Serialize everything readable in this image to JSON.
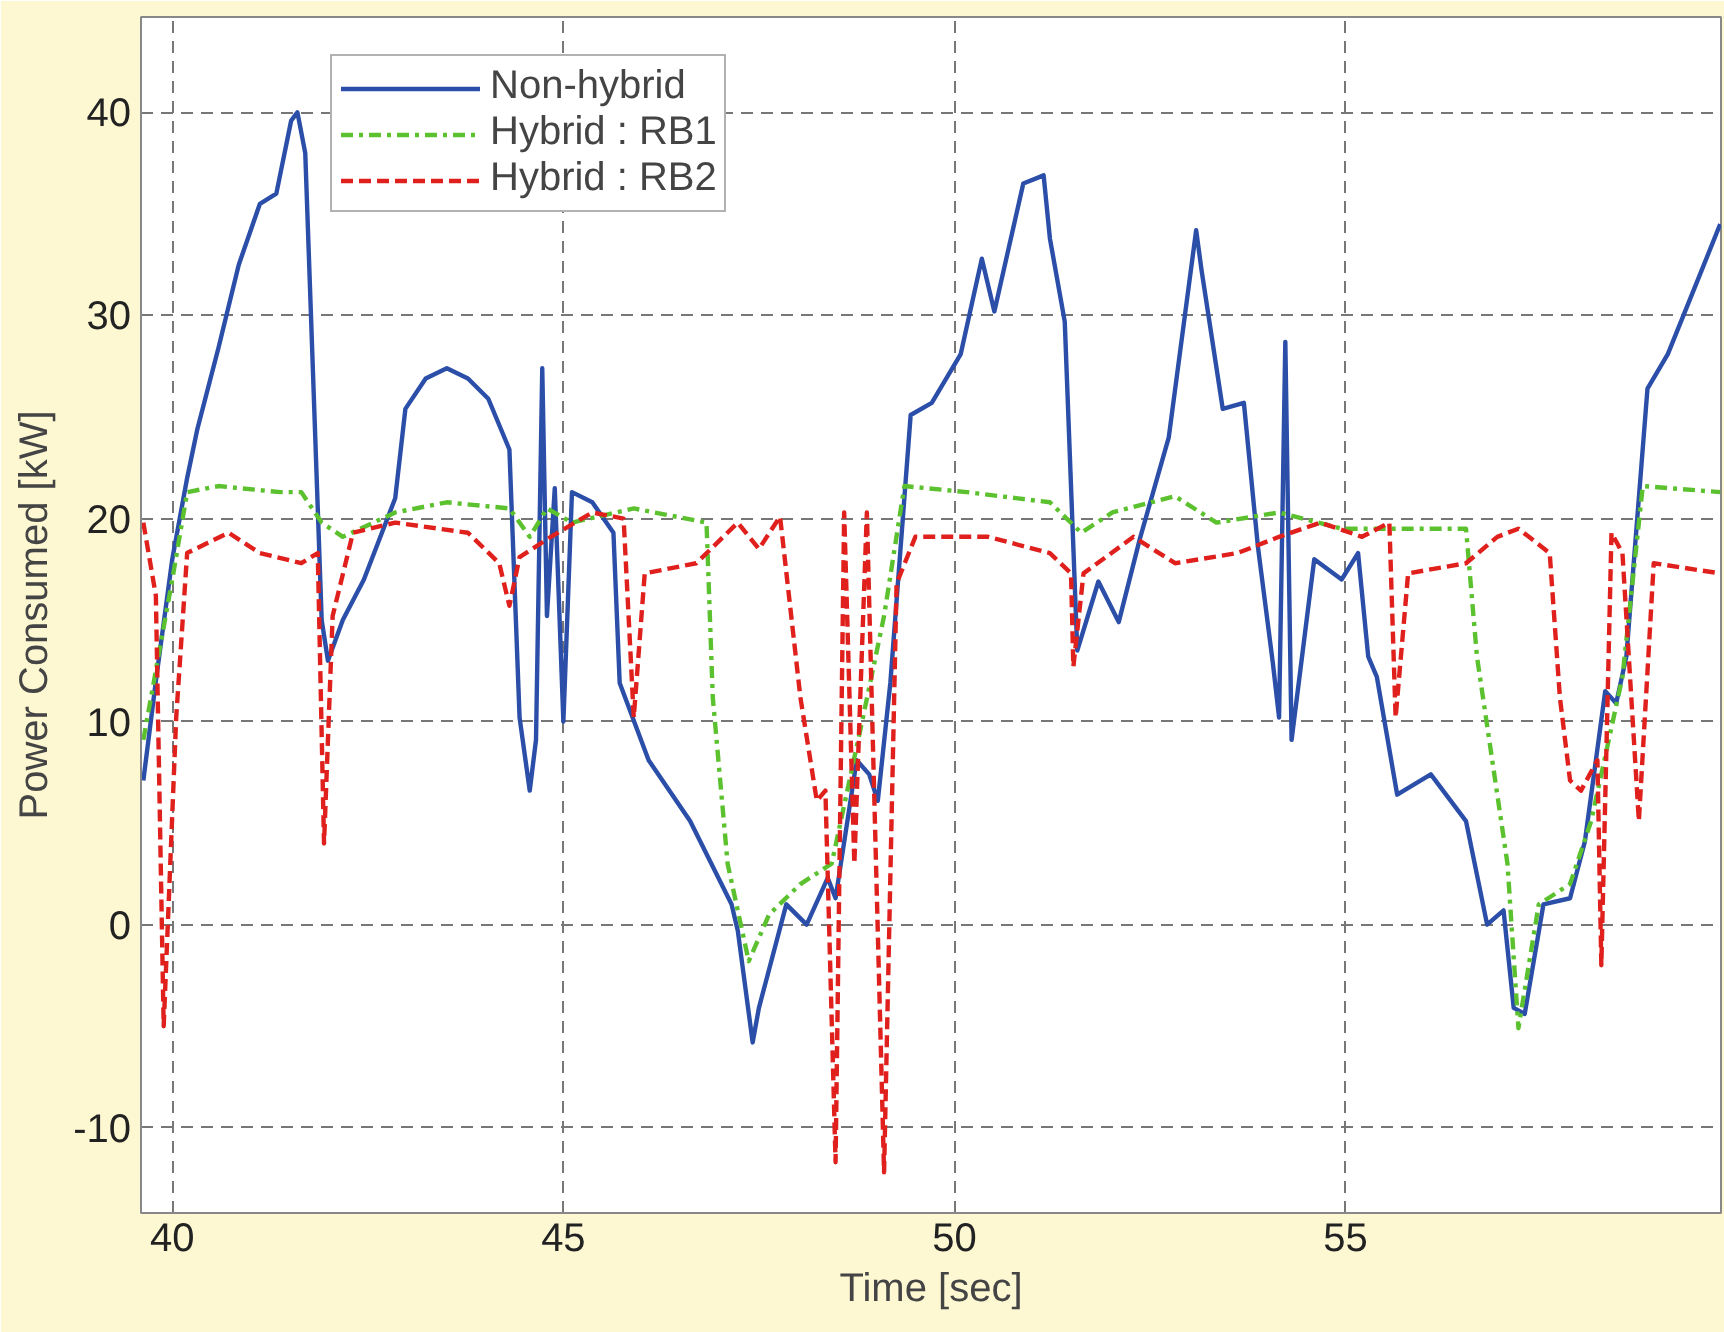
{
  "chart_data": {
    "type": "line",
    "xlabel": "Time [sec]",
    "ylabel": "Power Consumed [kW]",
    "xlim": [
      39.6,
      59.8
    ],
    "ylim": [
      -14.2,
      44.7
    ],
    "xticks": [
      40,
      45,
      50,
      55
    ],
    "yticks": [
      -10,
      0,
      10,
      20,
      30,
      40
    ],
    "grid": true,
    "legend": "top left",
    "series": [
      {
        "name": "Non-hybrid",
        "color": "#2b4ea8",
        "line_style": "solid",
        "x": [
          39.63,
          39.79,
          40.0,
          40.19,
          40.32,
          40.59,
          40.85,
          41.12,
          41.33,
          41.52,
          41.6,
          41.7,
          41.91,
          41.99,
          42.18,
          42.45,
          42.85,
          42.98,
          43.24,
          43.51,
          43.78,
          44.04,
          44.31,
          44.44,
          44.57,
          44.65,
          44.73,
          44.79,
          44.89,
          45.0,
          45.11,
          45.37,
          45.64,
          45.72,
          46.09,
          46.62,
          47.15,
          47.23,
          47.42,
          47.5,
          47.85,
          48.11,
          48.38,
          48.48,
          48.75,
          48.91,
          49.02,
          49.18,
          49.44,
          49.71,
          50.08,
          50.35,
          50.51,
          50.88,
          51.14,
          51.22,
          51.41,
          51.57,
          51.84,
          52.1,
          52.37,
          52.74,
          53.09,
          53.16,
          53.43,
          53.7,
          53.88,
          54.07,
          54.15,
          54.23,
          54.31,
          54.6,
          54.95,
          55.16,
          55.29,
          55.4,
          55.66,
          56.09,
          56.54,
          56.81,
          57.02,
          57.15,
          57.29,
          57.53,
          57.87,
          58.06,
          58.32,
          58.46,
          58.59,
          58.86,
          59.12,
          59.55,
          59.79
        ],
        "values": [
          7.1,
          12,
          18,
          22,
          24.4,
          28.4,
          32.5,
          35.5,
          36,
          39.6,
          40,
          38,
          15,
          13,
          15,
          17,
          21,
          25.4,
          26.9,
          27.4,
          26.9,
          25.9,
          23.4,
          10.2,
          6.6,
          9.1,
          27.4,
          15.2,
          21.5,
          10,
          21.3,
          20.8,
          19.3,
          11.9,
          8.1,
          5.1,
          1.0,
          -0.3,
          -5.8,
          -4.1,
          1.0,
          0,
          2.3,
          1.3,
          8.1,
          7.4,
          6.1,
          11.9,
          25.1,
          25.7,
          28.1,
          32.8,
          30.2,
          36.5,
          36.9,
          33.8,
          29.7,
          13.5,
          16.9,
          14.9,
          19,
          24,
          34.2,
          32.2,
          25.4,
          25.7,
          18.6,
          12.9,
          10.2,
          28.7,
          9.1,
          18,
          17,
          18.3,
          13.2,
          12.2,
          6.4,
          7.4,
          5.1,
          0,
          0.7,
          -4.1,
          -4.4,
          1,
          1.3,
          4.1,
          11.5,
          10.9,
          13.2,
          26.4,
          28.1,
          32.2,
          34.5
        ]
      },
      {
        "name": "Hybrid : RB1",
        "color": "#5cc12e",
        "line_style": "dashdot",
        "x": [
          39.63,
          40.0,
          40.19,
          40.59,
          41.38,
          41.65,
          41.91,
          42.18,
          42.85,
          43.51,
          44.31,
          44.57,
          44.79,
          45.11,
          45.9,
          46.83,
          46.91,
          47.1,
          47.37,
          47.63,
          48.03,
          48.43,
          48.83,
          49.1,
          49.36,
          50.16,
          51.22,
          51.62,
          52.02,
          52.82,
          53.35,
          54.15,
          54.95,
          56.54,
          56.68,
          57.07,
          57.21,
          57.47,
          57.87,
          58.14,
          58.54,
          58.8,
          59.79
        ],
        "values": [
          9.1,
          17,
          21.3,
          21.6,
          21.3,
          21.3,
          19.8,
          19.1,
          20.3,
          20.8,
          20.5,
          19.1,
          20.5,
          19.8,
          20.5,
          19.8,
          11.2,
          3,
          -1.8,
          0.5,
          2,
          3,
          10.2,
          15.2,
          21.6,
          21.3,
          20.8,
          19.3,
          20.3,
          21.1,
          19.8,
          20.3,
          19.5,
          19.5,
          13.2,
          3,
          -5.1,
          1,
          2,
          5.1,
          12.2,
          21.6,
          21.3
        ]
      },
      {
        "name": "Hybrid : RB2",
        "color": "#e0201c",
        "line_style": "dashed",
        "x": [
          39.63,
          39.79,
          39.89,
          40.05,
          40.19,
          40.45,
          40.72,
          41.12,
          41.65,
          41.86,
          41.94,
          42.05,
          42.31,
          42.85,
          43.78,
          44.18,
          44.31,
          44.44,
          44.84,
          45.37,
          45.77,
          45.9,
          46.04,
          46.7,
          47.23,
          47.5,
          47.77,
          48.03,
          48.24,
          48.35,
          48.48,
          48.59,
          48.72,
          48.88,
          49.1,
          49.26,
          49.5,
          50.43,
          51.22,
          51.49,
          51.52,
          51.65,
          52.29,
          52.82,
          53.62,
          54.15,
          54.68,
          55.21,
          55.56,
          55.64,
          55.8,
          56.54,
          56.94,
          57.21,
          57.61,
          57.74,
          57.87,
          58.01,
          58.22,
          58.27,
          58.4,
          58.54,
          58.75,
          58.94,
          59.79
        ],
        "values": [
          19.8,
          16.2,
          -5,
          10.2,
          18.3,
          18.8,
          19.3,
          18.3,
          17.8,
          18.3,
          4,
          15.2,
          19.3,
          19.8,
          19.3,
          17.8,
          15.7,
          18.1,
          19.1,
          20.3,
          20,
          10.2,
          17.3,
          17.8,
          19.8,
          18.5,
          20.1,
          11.2,
          6.1,
          6.6,
          -11.7,
          20.3,
          3,
          20.3,
          -12.2,
          16.8,
          19.1,
          19.1,
          18.3,
          17.3,
          12.7,
          17.3,
          19.1,
          17.8,
          18.3,
          19.1,
          19.8,
          19.1,
          19.8,
          10.2,
          17.3,
          17.8,
          19.1,
          19.5,
          18.3,
          11.2,
          7.1,
          6.6,
          8.1,
          -2,
          19.3,
          18.3,
          5.1,
          17.8,
          17.3
        ]
      }
    ]
  }
}
